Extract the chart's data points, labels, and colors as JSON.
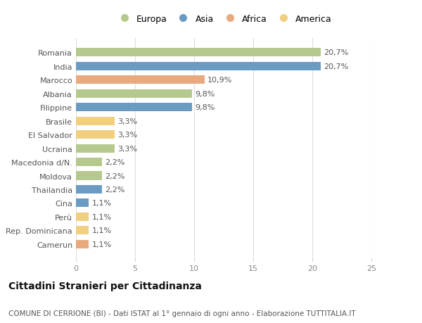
{
  "countries": [
    "Romania",
    "India",
    "Marocco",
    "Albania",
    "Filippine",
    "Brasile",
    "El Salvador",
    "Ucraina",
    "Macedonia d/N.",
    "Moldova",
    "Thailandia",
    "Cina",
    "Perù",
    "Rep. Dominicana",
    "Camerun"
  ],
  "values": [
    20.7,
    20.7,
    10.9,
    9.8,
    9.8,
    3.3,
    3.3,
    3.3,
    2.2,
    2.2,
    2.2,
    1.1,
    1.1,
    1.1,
    1.1
  ],
  "labels": [
    "20,7%",
    "20,7%",
    "10,9%",
    "9,8%",
    "9,8%",
    "3,3%",
    "3,3%",
    "3,3%",
    "2,2%",
    "2,2%",
    "2,2%",
    "1,1%",
    "1,1%",
    "1,1%",
    "1,1%"
  ],
  "continents": [
    "Europa",
    "Asia",
    "Africa",
    "Europa",
    "Asia",
    "America",
    "America",
    "Europa",
    "Europa",
    "Europa",
    "Asia",
    "Asia",
    "America",
    "America",
    "Africa"
  ],
  "continent_colors": {
    "Europa": "#b5c98e",
    "Asia": "#6b9bc3",
    "Africa": "#e8a97e",
    "America": "#f0d080"
  },
  "legend_order": [
    "Europa",
    "Asia",
    "Africa",
    "America"
  ],
  "title": "Cittadini Stranieri per Cittadinanza",
  "subtitle": "COMUNE DI CERRIONE (BI) - Dati ISTAT al 1° gennaio di ogni anno - Elaborazione TUTTITALIA.IT",
  "xlim": [
    0,
    25
  ],
  "xticks": [
    0,
    5,
    10,
    15,
    20,
    25
  ],
  "background_color": "#ffffff",
  "grid_color": "#dddddd",
  "bar_height": 0.62,
  "title_fontsize": 10,
  "subtitle_fontsize": 7.5,
  "label_fontsize": 8,
  "tick_fontsize": 8,
  "legend_fontsize": 9
}
